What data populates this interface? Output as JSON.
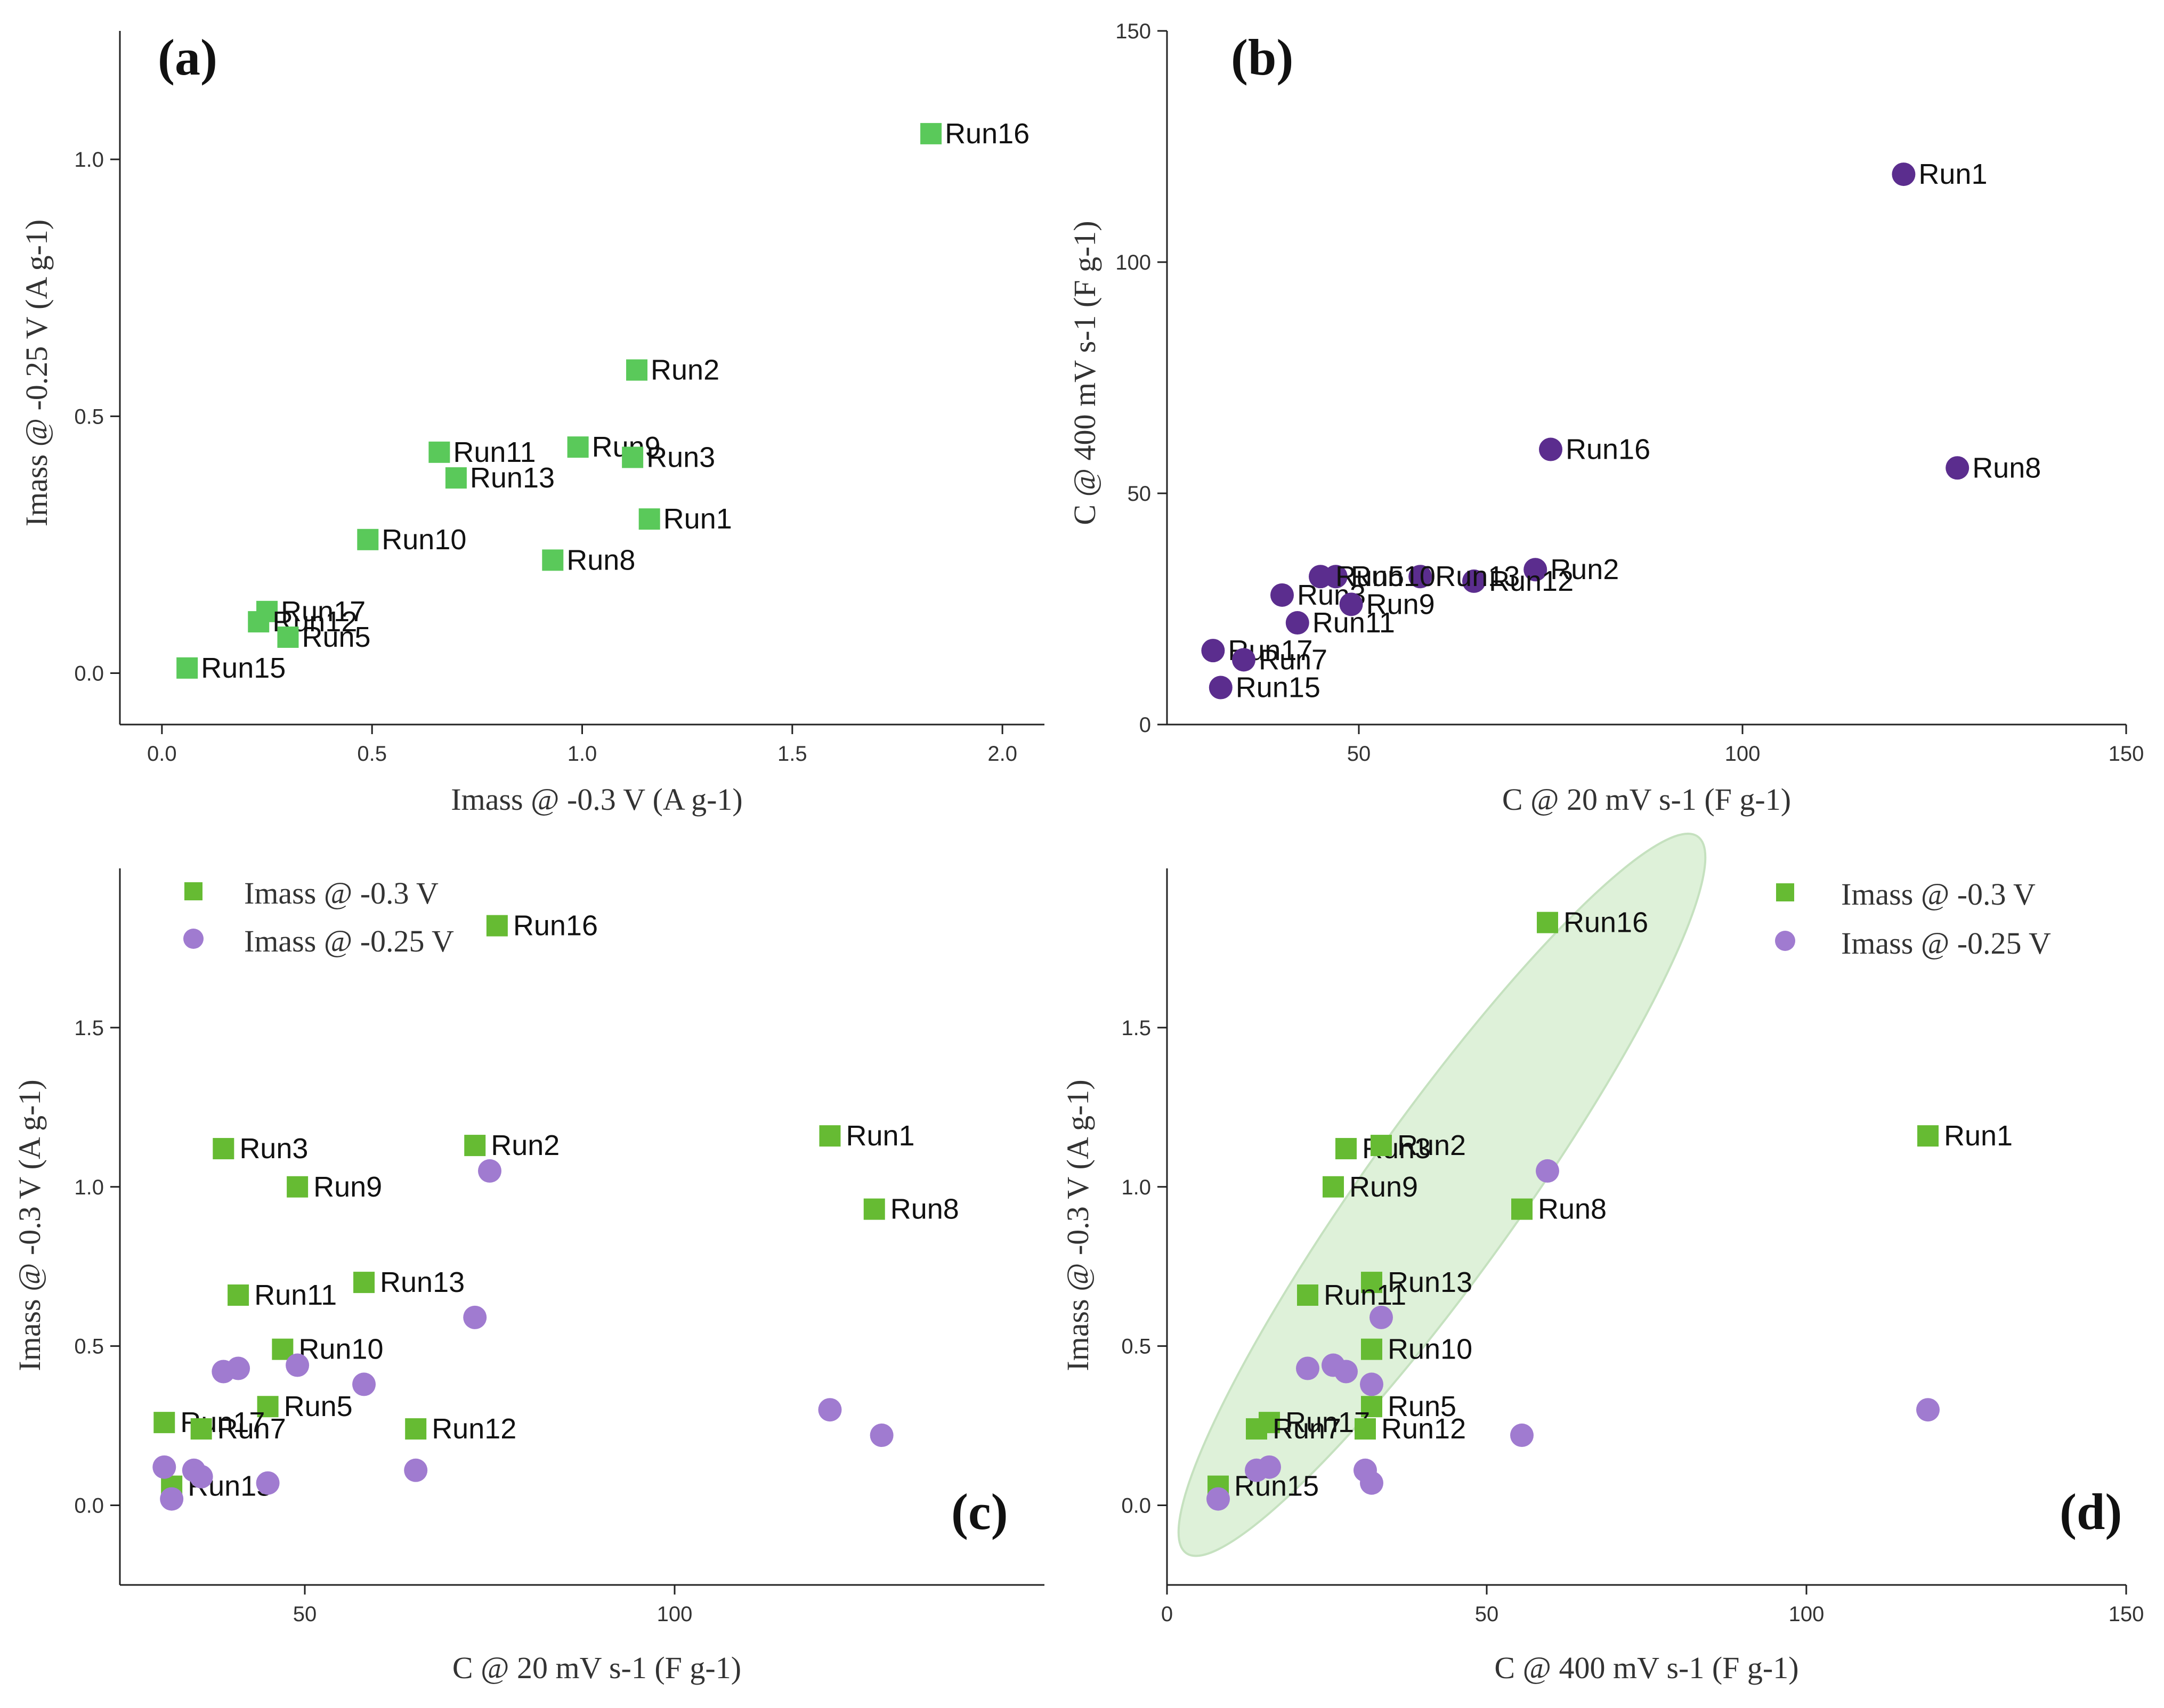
{
  "colors": {
    "green": "#5ac95a",
    "green_dark": "#66bb33",
    "purple": "#5b2d8e",
    "purple_light": "#a07bd0",
    "ellipse_fill": "#d9efd3",
    "ellipse_stroke": "#bcdcb4"
  },
  "chart_data": [
    {
      "id": "a",
      "type": "scatter",
      "panel_label": "(a)",
      "xlabel": "Imass @ -0.3 V (A g-1)",
      "ylabel": "Imass @ -0.25 V (A g-1)",
      "xlim": [
        -0.1,
        2.1
      ],
      "ylim": [
        -0.1,
        1.25
      ],
      "xticks": [
        "0.0",
        "0.5",
        "1.0",
        "1.5",
        "2.0"
      ],
      "yticks": [
        "0.0",
        "0.5",
        "1.0"
      ],
      "xtick_values": [
        0,
        0.5,
        1.0,
        1.5,
        2.0
      ],
      "ytick_values": [
        0,
        0.5,
        1.0
      ],
      "marker": "square",
      "series": [
        {
          "color": "#5ac95a",
          "points": [
            {
              "x": 1.83,
              "y": 1.05,
              "label": "Run16"
            },
            {
              "x": 1.13,
              "y": 0.59,
              "label": "Run2"
            },
            {
              "x": 0.66,
              "y": 0.43,
              "label": "Run11"
            },
            {
              "x": 0.99,
              "y": 0.44,
              "label": "Run9"
            },
            {
              "x": 1.12,
              "y": 0.42,
              "label": "Run3"
            },
            {
              "x": 0.7,
              "y": 0.38,
              "label": "Run13"
            },
            {
              "x": 1.16,
              "y": 0.3,
              "label": "Run1"
            },
            {
              "x": 0.49,
              "y": 0.26,
              "label": "Run10"
            },
            {
              "x": 0.93,
              "y": 0.22,
              "label": "Run8"
            },
            {
              "x": 0.25,
              "y": 0.12,
              "label": "Run17"
            },
            {
              "x": 0.23,
              "y": 0.1,
              "label": "Run12"
            },
            {
              "x": 0.3,
              "y": 0.07,
              "label": "Run5"
            },
            {
              "x": 0.06,
              "y": 0.01,
              "label": "Run15"
            }
          ]
        }
      ]
    },
    {
      "id": "b",
      "type": "scatter",
      "panel_label": "(b)",
      "xlabel": "C @ 20 mV s-1 (F g-1)",
      "ylabel": "C @ 400 mV s-1 (F g-1)",
      "xlim": [
        25,
        150
      ],
      "ylim": [
        0,
        150
      ],
      "xticks": [
        "50",
        "100",
        "150"
      ],
      "yticks": [
        "0",
        "50",
        "100",
        "150"
      ],
      "xtick_values": [
        50,
        100,
        150
      ],
      "ytick_values": [
        0,
        50,
        100,
        150
      ],
      "marker": "circle",
      "series": [
        {
          "color": "#5b2d8e",
          "points": [
            {
              "x": 121,
              "y": 119,
              "label": "Run1"
            },
            {
              "x": 75,
              "y": 59.5,
              "label": "Run16"
            },
            {
              "x": 128,
              "y": 55.5,
              "label": "Run8"
            },
            {
              "x": 73,
              "y": 33.5,
              "label": "Run2"
            },
            {
              "x": 65,
              "y": 31,
              "label": "Run12"
            },
            {
              "x": 58,
              "y": 32,
              "label": "Run13"
            },
            {
              "x": 47,
              "y": 32,
              "label": "Run10"
            },
            {
              "x": 45,
              "y": 32,
              "label": "Run5"
            },
            {
              "x": 40,
              "y": 28,
              "label": "Run3"
            },
            {
              "x": 49,
              "y": 26,
              "label": "Run9"
            },
            {
              "x": 42,
              "y": 22,
              "label": "Run11"
            },
            {
              "x": 31,
              "y": 16,
              "label": "Run17"
            },
            {
              "x": 35,
              "y": 14,
              "label": "Run7"
            },
            {
              "x": 32,
              "y": 8,
              "label": "Run15"
            }
          ]
        }
      ]
    },
    {
      "id": "c",
      "type": "scatter",
      "panel_label": "(c)",
      "xlabel": "C @ 20 mV s-1 (F g-1)",
      "ylabel": "Imass @ -0.3 V (A g-1)",
      "xlim": [
        25,
        150
      ],
      "ylim": [
        -0.25,
        2.0
      ],
      "xticks": [
        "50",
        "100"
      ],
      "yticks": [
        "0.0",
        "0.5",
        "1.0",
        "1.5"
      ],
      "xtick_values": [
        50,
        100
      ],
      "ytick_values": [
        0,
        0.5,
        1.0,
        1.5
      ],
      "legend": {
        "position": "top-left",
        "entries": [
          "Imass @ -0.3 V",
          "Imass @ -0.25 V"
        ]
      },
      "series": [
        {
          "name": "Imass @ -0.3 V",
          "marker": "square",
          "color": "#66bb33",
          "points": [
            {
              "x": 76,
              "y": 1.82,
              "label": "Run16"
            },
            {
              "x": 121,
              "y": 1.16,
              "label": "Run1"
            },
            {
              "x": 127,
              "y": 0.93,
              "label": "Run8"
            },
            {
              "x": 39,
              "y": 1.12,
              "label": "Run3"
            },
            {
              "x": 73,
              "y": 1.13,
              "label": "Run2"
            },
            {
              "x": 49,
              "y": 1.0,
              "label": "Run9"
            },
            {
              "x": 58,
              "y": 0.7,
              "label": "Run13"
            },
            {
              "x": 41,
              "y": 0.66,
              "label": "Run11"
            },
            {
              "x": 47,
              "y": 0.49,
              "label": "Run10"
            },
            {
              "x": 45,
              "y": 0.31,
              "label": "Run5"
            },
            {
              "x": 31,
              "y": 0.26,
              "label": "Run17"
            },
            {
              "x": 36,
              "y": 0.24,
              "label": "Run7"
            },
            {
              "x": 65,
              "y": 0.24,
              "label": "Run12"
            },
            {
              "x": 32,
              "y": 0.06,
              "label": "Run15"
            }
          ]
        },
        {
          "name": "Imass @ -0.25 V",
          "marker": "circle",
          "color": "#a07bd0",
          "points": [
            {
              "x": 75,
              "y": 1.05
            },
            {
              "x": 73,
              "y": 0.59
            },
            {
              "x": 121,
              "y": 0.3
            },
            {
              "x": 128,
              "y": 0.22
            },
            {
              "x": 39,
              "y": 0.42
            },
            {
              "x": 41,
              "y": 0.43
            },
            {
              "x": 49,
              "y": 0.44
            },
            {
              "x": 58,
              "y": 0.38
            },
            {
              "x": 65,
              "y": 0.11
            },
            {
              "x": 31,
              "y": 0.12
            },
            {
              "x": 35,
              "y": 0.11
            },
            {
              "x": 36,
              "y": 0.09
            },
            {
              "x": 45,
              "y": 0.07
            },
            {
              "x": 32,
              "y": 0.02
            }
          ]
        }
      ]
    },
    {
      "id": "d",
      "type": "scatter",
      "panel_label": "(d)",
      "xlabel": "C @ 400 mV s-1 (F g-1)",
      "ylabel": "Imass @ -0.3 V (A g-1)",
      "xlim": [
        0,
        150
      ],
      "ylim": [
        -0.25,
        2.0
      ],
      "xticks": [
        "0",
        "50",
        "100",
        "150"
      ],
      "yticks": [
        "0.0",
        "0.5",
        "1.0",
        "1.5"
      ],
      "xtick_values": [
        0,
        50,
        100,
        150
      ],
      "ytick_values": [
        0,
        0.5,
        1.0,
        1.5
      ],
      "legend": {
        "position": "top-right",
        "entries": [
          "Imass @ -0.3 V",
          "Imass @ -0.25 V"
        ]
      },
      "series": [
        {
          "name": "Imass @ -0.3 V",
          "marker": "square",
          "color": "#66bb33",
          "points": [
            {
              "x": 59.5,
              "y": 1.83,
              "label": "Run16"
            },
            {
              "x": 119,
              "y": 1.16,
              "label": "Run1"
            },
            {
              "x": 28,
              "y": 1.12,
              "label": "Run3"
            },
            {
              "x": 33.5,
              "y": 1.13,
              "label": "Run2"
            },
            {
              "x": 26,
              "y": 1.0,
              "label": "Run9"
            },
            {
              "x": 55.5,
              "y": 0.93,
              "label": "Run8"
            },
            {
              "x": 32,
              "y": 0.7,
              "label": "Run13"
            },
            {
              "x": 22,
              "y": 0.66,
              "label": "Run11"
            },
            {
              "x": 32,
              "y": 0.49,
              "label": "Run10"
            },
            {
              "x": 32,
              "y": 0.31,
              "label": "Run5"
            },
            {
              "x": 16,
              "y": 0.26,
              "label": "Run17"
            },
            {
              "x": 14,
              "y": 0.24,
              "label": "Run7"
            },
            {
              "x": 31,
              "y": 0.24,
              "label": "Run12"
            },
            {
              "x": 8,
              "y": 0.06,
              "label": "Run15"
            }
          ]
        },
        {
          "name": "Imass @ -0.25 V",
          "marker": "circle",
          "color": "#a07bd0",
          "points": [
            {
              "x": 59.5,
              "y": 1.05
            },
            {
              "x": 33.5,
              "y": 0.59
            },
            {
              "x": 119,
              "y": 0.3
            },
            {
              "x": 55.5,
              "y": 0.22
            },
            {
              "x": 22,
              "y": 0.43
            },
            {
              "x": 26,
              "y": 0.44
            },
            {
              "x": 28,
              "y": 0.42
            },
            {
              "x": 32,
              "y": 0.38
            },
            {
              "x": 31,
              "y": 0.11
            },
            {
              "x": 14,
              "y": 0.11
            },
            {
              "x": 16,
              "y": 0.12
            },
            {
              "x": 32,
              "y": 0.07
            },
            {
              "x": 8,
              "y": 0.02
            }
          ]
        }
      ],
      "ellipse": {
        "from": {
          "x": 3,
          "y": -0.15
        },
        "to": {
          "x": 83,
          "y": 2.1
        },
        "minor_axis_data": 0.22
      }
    }
  ]
}
